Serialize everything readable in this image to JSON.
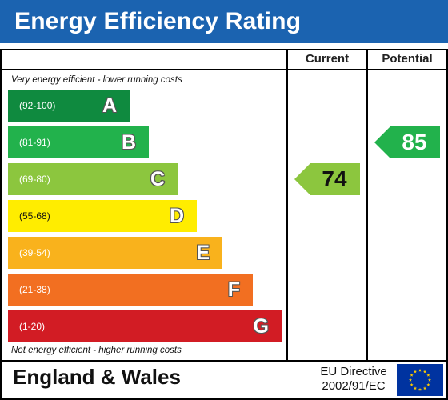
{
  "header": {
    "title": "Energy Efficiency Rating"
  },
  "columns": {
    "current": "Current",
    "potential": "Potential"
  },
  "notes": {
    "top": "Very energy efficient - lower running costs",
    "bottom": "Not energy efficient - higher running costs"
  },
  "colors": {
    "header_bg": "#1b63b0",
    "A": "#0f8a3f",
    "B": "#22b24c",
    "C": "#8cc63e",
    "D": "#ffed00",
    "E": "#f9b21c",
    "F": "#f26f21",
    "G": "#d21c24",
    "eu_blue": "#0033a0",
    "eu_star": "#ffcc00"
  },
  "chart_data": {
    "type": "bar",
    "categories": [
      "A",
      "B",
      "C",
      "D",
      "E",
      "F",
      "G"
    ],
    "ranges": [
      "(92-100)",
      "(81-91)",
      "(69-80)",
      "(55-68)",
      "(39-54)",
      "(21-38)",
      "(1-20)"
    ],
    "current": {
      "value": 74,
      "band": "C"
    },
    "potential": {
      "value": 85,
      "band": "B"
    }
  },
  "footer": {
    "country": "England & Wales",
    "directive_line1": "EU Directive",
    "directive_line2": "2002/91/EC",
    "flag_icon": "eu-flag-icon"
  }
}
